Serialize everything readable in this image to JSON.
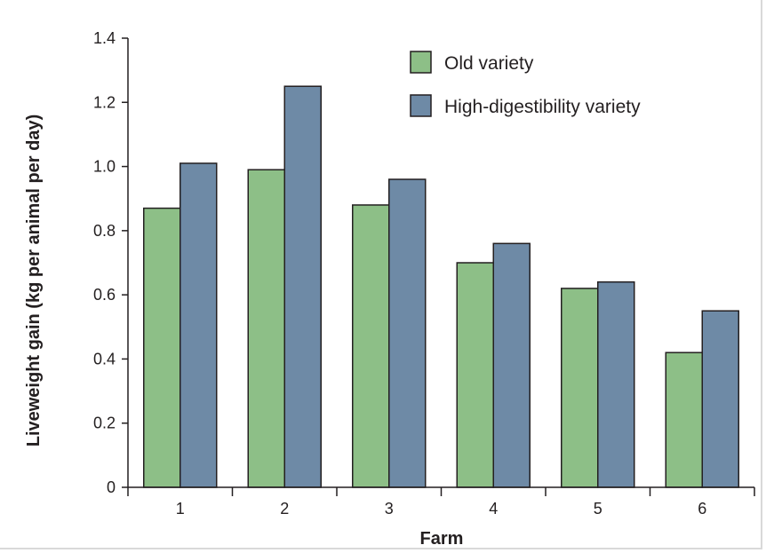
{
  "chart_data": {
    "type": "bar",
    "xlabel": "Farm",
    "ylabel": "Liveweight gain (kg per animal per day)",
    "categories": [
      "1",
      "2",
      "3",
      "4",
      "5",
      "6"
    ],
    "series": [
      {
        "name": "Old variety",
        "color": "#8dbf87",
        "values": [
          0.87,
          0.99,
          0.88,
          0.7,
          0.62,
          0.42
        ]
      },
      {
        "name": "High-digestibility variety",
        "color": "#6e8aa6",
        "values": [
          1.01,
          1.25,
          0.96,
          0.76,
          0.64,
          0.55
        ]
      }
    ],
    "ylim": [
      0,
      1.4
    ],
    "yticks": [
      "0",
      "0.2",
      "0.4",
      "0.6",
      "0.8",
      "1.0",
      "1.2",
      "1.4"
    ],
    "grid": false,
    "legend_position": "top-right"
  }
}
